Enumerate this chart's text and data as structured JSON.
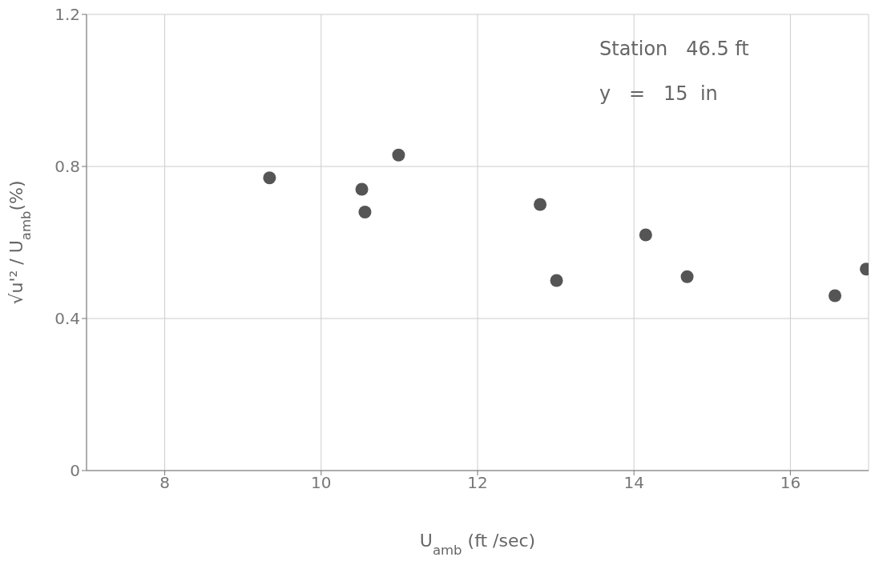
{
  "chart_data": {
    "type": "scatter",
    "xlabel": "U$_{amb}$  (ft /sec)",
    "ylabel": "√u'² / U$_{amb}$(%)",
    "annotations": [
      "Station   46.5 ft",
      "y   =   15  in"
    ],
    "x": [
      9.34,
      10.52,
      10.56,
      10.99,
      12.8,
      13.01,
      14.15,
      14.68,
      16.57,
      16.97
    ],
    "values": [
      0.77,
      0.74,
      0.68,
      0.83,
      0.7,
      0.5,
      0.62,
      0.51,
      0.46,
      0.53
    ],
    "color": "#555555",
    "marker": "circle",
    "xlim": [
      7,
      17
    ],
    "xticks": [
      8,
      10,
      12,
      14,
      16
    ],
    "ylim": [
      0,
      1.2
    ],
    "yticks": [
      0,
      0.4,
      0.8,
      1.2
    ],
    "grid": true
  }
}
